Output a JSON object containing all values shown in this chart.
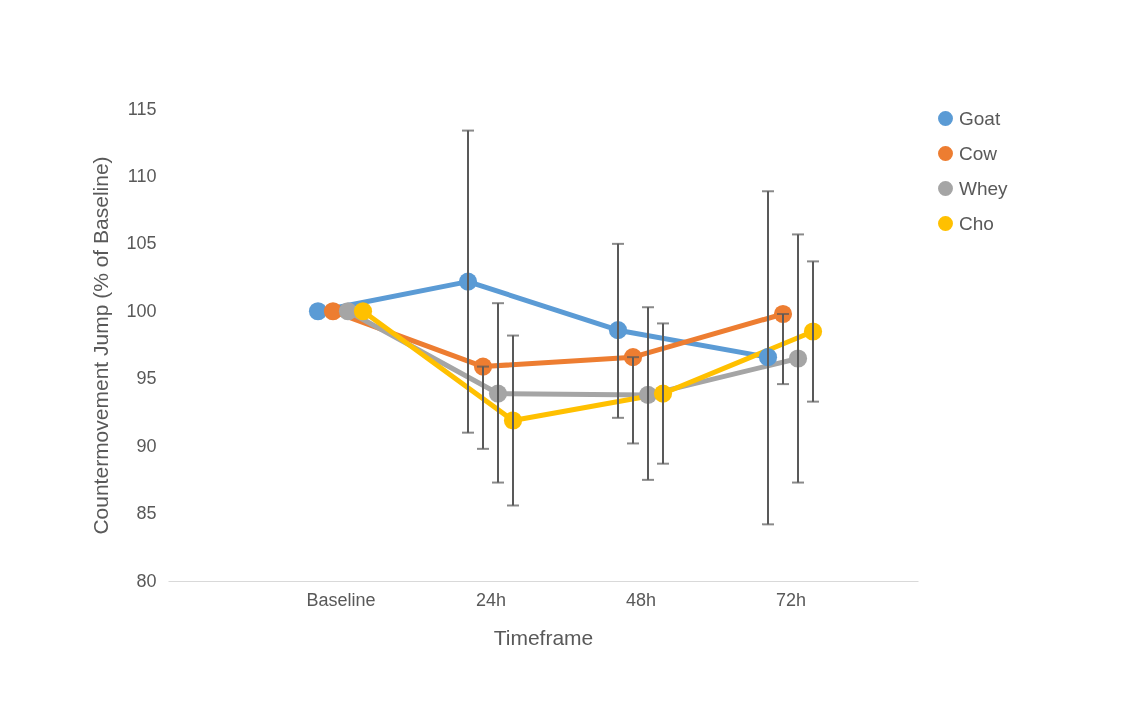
{
  "chart_data": {
    "type": "line",
    "xlabel": "Timeframe",
    "ylabel": "Countermovement Jump (% of Baseline)",
    "categories": [
      "Baseline",
      "24h",
      "48h",
      "72h"
    ],
    "series": [
      {
        "name": "Goat",
        "color": "#5b9bd5",
        "values": [
          100,
          102.2,
          98.6,
          96.6
        ],
        "errors": [
          null,
          [
            91.0,
            113.4
          ],
          [
            92.1,
            105.0
          ],
          [
            84.2,
            108.9
          ]
        ]
      },
      {
        "name": "Cow",
        "color": "#ed7d31",
        "values": [
          100,
          95.9,
          96.6,
          99.8
        ],
        "errors": [
          null,
          [
            89.8,
            95.9
          ],
          [
            90.2,
            96.6
          ],
          [
            94.6,
            99.8
          ]
        ]
      },
      {
        "name": "Whey",
        "color": "#a5a5a5",
        "values": [
          100,
          93.9,
          93.8,
          96.5
        ],
        "errors": [
          null,
          [
            87.3,
            100.6
          ],
          [
            87.5,
            100.3
          ],
          [
            87.3,
            105.7
          ]
        ]
      },
      {
        "name": "Cho",
        "color": "#ffc000",
        "values": [
          100,
          91.9,
          93.9,
          98.5
        ],
        "errors": [
          null,
          [
            85.6,
            98.2
          ],
          [
            88.7,
            99.1
          ],
          [
            93.3,
            103.7
          ]
        ]
      }
    ],
    "ylim": [
      80,
      115
    ],
    "yticks": [
      80,
      85,
      90,
      95,
      100,
      105,
      110,
      115
    ],
    "grid": false,
    "legend": "right",
    "marker": "circle",
    "line_style": "solid"
  }
}
